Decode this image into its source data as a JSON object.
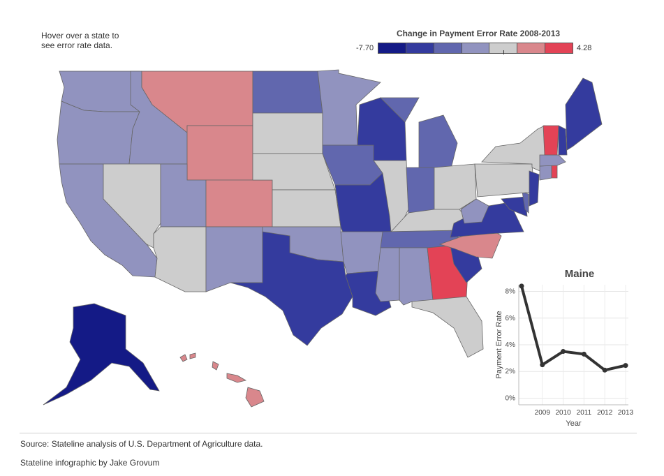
{
  "hint": "Hover over a state to see error rate data.",
  "legend": {
    "title": "Change in Payment Error Rate 2008-2013",
    "min_label": "-7.70",
    "max_label": "4.28",
    "colors": [
      "#141a86",
      "#343b9e",
      "#6167ae",
      "#9193bf",
      "#cdcdcd",
      "#d9878c",
      "#e34356"
    ]
  },
  "map": {
    "states": [
      {
        "name": "Washington",
        "abbr": "WA",
        "color": "#9193bf"
      },
      {
        "name": "Oregon",
        "abbr": "OR",
        "color": "#9193bf"
      },
      {
        "name": "California",
        "abbr": "CA",
        "color": "#9193bf"
      },
      {
        "name": "Idaho",
        "abbr": "ID",
        "color": "#9193bf"
      },
      {
        "name": "Nevada",
        "abbr": "NV",
        "color": "#cdcdcd"
      },
      {
        "name": "Montana",
        "abbr": "MT",
        "color": "#d9878c"
      },
      {
        "name": "Wyoming",
        "abbr": "WY",
        "color": "#d9878c"
      },
      {
        "name": "Utah",
        "abbr": "UT",
        "color": "#9193bf"
      },
      {
        "name": "Arizona",
        "abbr": "AZ",
        "color": "#cdcdcd"
      },
      {
        "name": "Colorado",
        "abbr": "CO",
        "color": "#d9878c"
      },
      {
        "name": "New Mexico",
        "abbr": "NM",
        "color": "#9193bf"
      },
      {
        "name": "North Dakota",
        "abbr": "ND",
        "color": "#6167ae"
      },
      {
        "name": "South Dakota",
        "abbr": "SD",
        "color": "#cdcdcd"
      },
      {
        "name": "Nebraska",
        "abbr": "NE",
        "color": "#cdcdcd"
      },
      {
        "name": "Kansas",
        "abbr": "KS",
        "color": "#cdcdcd"
      },
      {
        "name": "Oklahoma",
        "abbr": "OK",
        "color": "#9193bf"
      },
      {
        "name": "Texas",
        "abbr": "TX",
        "color": "#343b9e"
      },
      {
        "name": "Minnesota",
        "abbr": "MN",
        "color": "#9193bf"
      },
      {
        "name": "Iowa",
        "abbr": "IA",
        "color": "#6167ae"
      },
      {
        "name": "Missouri",
        "abbr": "MO",
        "color": "#343b9e"
      },
      {
        "name": "Arkansas",
        "abbr": "AR",
        "color": "#9193bf"
      },
      {
        "name": "Louisiana",
        "abbr": "LA",
        "color": "#343b9e"
      },
      {
        "name": "Wisconsin",
        "abbr": "WI",
        "color": "#343b9e"
      },
      {
        "name": "Illinois",
        "abbr": "IL",
        "color": "#cdcdcd"
      },
      {
        "name": "Michigan",
        "abbr": "MI",
        "color": "#6167ae"
      },
      {
        "name": "Indiana",
        "abbr": "IN",
        "color": "#6167ae"
      },
      {
        "name": "Ohio",
        "abbr": "OH",
        "color": "#cdcdcd"
      },
      {
        "name": "Kentucky",
        "abbr": "KY",
        "color": "#cdcdcd"
      },
      {
        "name": "Tennessee",
        "abbr": "TN",
        "color": "#6167ae"
      },
      {
        "name": "Mississippi",
        "abbr": "MS",
        "color": "#9193bf"
      },
      {
        "name": "Alabama",
        "abbr": "AL",
        "color": "#9193bf"
      },
      {
        "name": "Georgia",
        "abbr": "GA",
        "color": "#e34356"
      },
      {
        "name": "Florida",
        "abbr": "FL",
        "color": "#cdcdcd"
      },
      {
        "name": "South Carolina",
        "abbr": "SC",
        "color": "#343b9e"
      },
      {
        "name": "North Carolina",
        "abbr": "NC",
        "color": "#d9878c"
      },
      {
        "name": "Virginia",
        "abbr": "VA",
        "color": "#343b9e"
      },
      {
        "name": "West Virginia",
        "abbr": "WV",
        "color": "#9193bf"
      },
      {
        "name": "Maryland",
        "abbr": "MD",
        "color": "#343b9e"
      },
      {
        "name": "Delaware",
        "abbr": "DE",
        "color": "#6167ae"
      },
      {
        "name": "Pennsylvania",
        "abbr": "PA",
        "color": "#cdcdcd"
      },
      {
        "name": "New Jersey",
        "abbr": "NJ",
        "color": "#343b9e"
      },
      {
        "name": "New York",
        "abbr": "NY",
        "color": "#cdcdcd"
      },
      {
        "name": "Connecticut",
        "abbr": "CT",
        "color": "#9193bf"
      },
      {
        "name": "Rhode Island",
        "abbr": "RI",
        "color": "#e34356"
      },
      {
        "name": "Massachusetts",
        "abbr": "MA",
        "color": "#9193bf"
      },
      {
        "name": "Vermont",
        "abbr": "VT",
        "color": "#e34356"
      },
      {
        "name": "New Hampshire",
        "abbr": "NH",
        "color": "#343b9e"
      },
      {
        "name": "Maine",
        "abbr": "ME",
        "color": "#343b9e"
      },
      {
        "name": "Alaska",
        "abbr": "AK",
        "color": "#141a86"
      },
      {
        "name": "Hawaii",
        "abbr": "HI",
        "color": "#d9878c"
      }
    ]
  },
  "chart_data": {
    "type": "line",
    "title": "Maine",
    "xlabel": "Year",
    "ylabel": "Payment Error Rate",
    "x": [
      2008,
      2009,
      2010,
      2011,
      2012,
      2013
    ],
    "series": [
      {
        "values": [
          8.4,
          2.5,
          3.5,
          3.3,
          2.1,
          2.45
        ]
      }
    ],
    "xticks": [
      "2009",
      "2010",
      "2011",
      "2012",
      "2013"
    ],
    "yticks": [
      "0%",
      "2%",
      "4%",
      "6%",
      "8%"
    ],
    "ylim": [
      -0.5,
      8.5
    ],
    "grid": true,
    "line_color": "#333333"
  },
  "footer": {
    "source": "Source: Stateline analysis of U.S. Department of Agriculture data.",
    "credit": "Stateline infographic by Jake Grovum"
  }
}
